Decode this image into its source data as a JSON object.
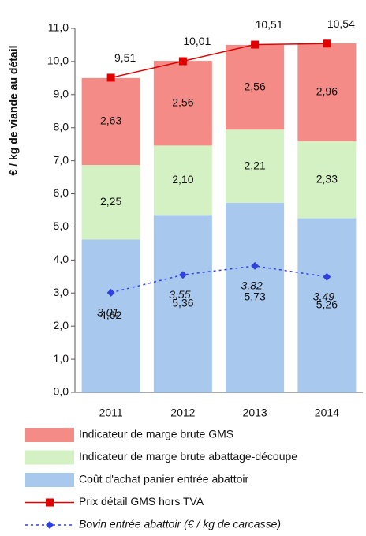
{
  "chart_data": {
    "type": "bar",
    "stacked": true,
    "y_label": "€ / kg de viande au détail",
    "categories": [
      "2011",
      "2012",
      "2013",
      "2014"
    ],
    "ylim": [
      0,
      11
    ],
    "yticks": [
      {
        "value": 0,
        "label": "0,0"
      },
      {
        "value": 1,
        "label": "1,0"
      },
      {
        "value": 2,
        "label": "2,0"
      },
      {
        "value": 3,
        "label": "3,0"
      },
      {
        "value": 4,
        "label": "4,0"
      },
      {
        "value": 5,
        "label": "5,0"
      },
      {
        "value": 6,
        "label": "6,0"
      },
      {
        "value": 7,
        "label": "7,0"
      },
      {
        "value": 8,
        "label": "8,0"
      },
      {
        "value": 9,
        "label": "9,0"
      },
      {
        "value": 10,
        "label": "10,0"
      },
      {
        "value": 11,
        "label": "11,0"
      }
    ],
    "series": [
      {
        "name": "Indicateur de marge brute GMS",
        "type": "bar",
        "color": "#f48b86",
        "values": [
          2.63,
          2.56,
          2.56,
          2.96
        ],
        "value_labels": [
          "2,63",
          "2,56",
          "2,56",
          "2,96"
        ]
      },
      {
        "name": "Indicateur de marge brute abattage-découpe",
        "type": "bar",
        "color": "#d3f1c2",
        "values": [
          2.25,
          2.1,
          2.21,
          2.33
        ],
        "value_labels": [
          "2,25",
          "2,10",
          "2,21",
          "2,33"
        ]
      },
      {
        "name": "Coût d'achat panier entrée abattoir",
        "type": "bar",
        "color": "#a9c8ee",
        "values": [
          4.62,
          5.36,
          5.73,
          5.26
        ],
        "value_labels": [
          "4,62",
          "5,36",
          "5,73",
          "5,26"
        ]
      },
      {
        "name": "Prix détail GMS hors TVA",
        "type": "line",
        "color": "#e00000",
        "marker": "square",
        "dashed": false,
        "values": [
          9.51,
          10.01,
          10.51,
          10.54
        ],
        "value_labels": [
          "9,51",
          "10,01",
          "10,51",
          "10,54"
        ]
      },
      {
        "name": "Bovin entrée abattoir (€ / kg de carcasse)",
        "type": "line",
        "color": "#2f3fe0",
        "marker": "diamond",
        "dashed": true,
        "italic": true,
        "values": [
          3.01,
          3.55,
          3.82,
          3.49
        ],
        "value_labels": [
          "3,01",
          "3,55",
          "3,82",
          "3,49"
        ]
      }
    ]
  }
}
